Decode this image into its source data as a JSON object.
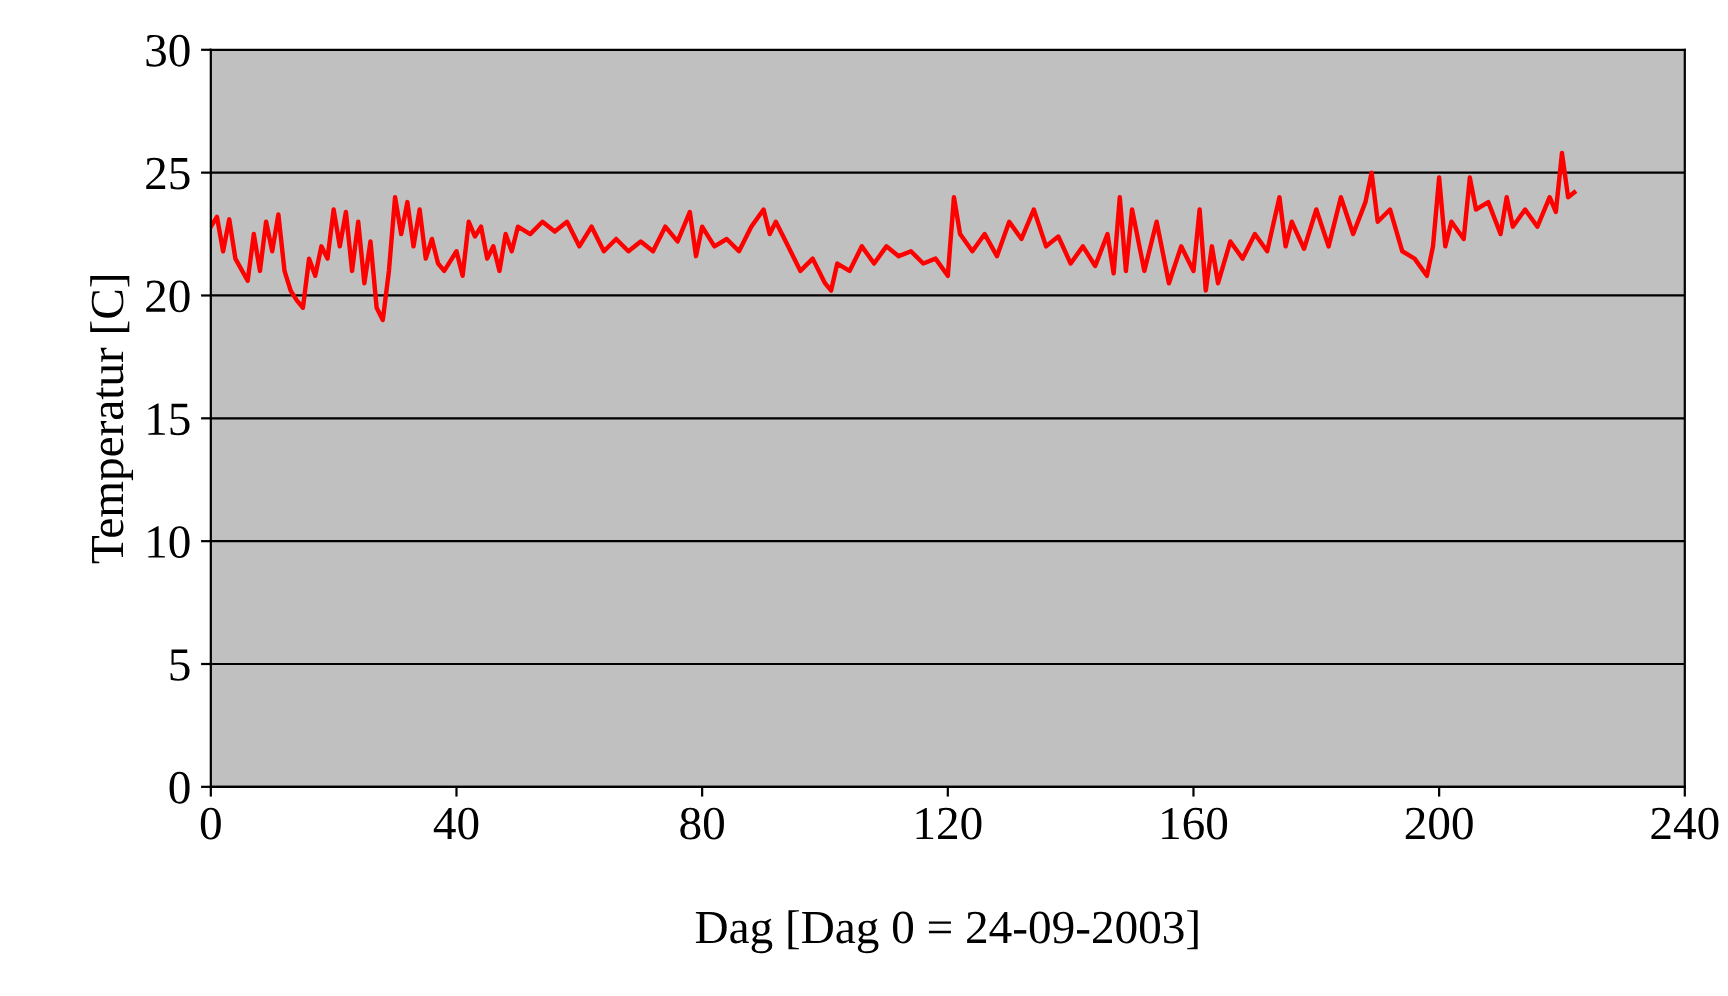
{
  "chart_data": {
    "type": "line",
    "xlabel": "Dag [Dag 0 = 24-09-2003]",
    "ylabel": "Temperatur [C]",
    "xlim": [
      0,
      240
    ],
    "xticks": [
      0,
      40,
      80,
      120,
      160,
      200,
      240
    ],
    "ylim": [
      0,
      30
    ],
    "yticks": [
      0,
      5,
      10,
      15,
      20,
      25,
      30
    ],
    "grid": "y",
    "legend": false,
    "series": [
      {
        "color": "#ff0000",
        "x": [
          0,
          1,
          2,
          3,
          4,
          6,
          7,
          8,
          9,
          10,
          11,
          12,
          13,
          14,
          15,
          16,
          17,
          18,
          19,
          20,
          21,
          22,
          23,
          24,
          25,
          26,
          27,
          28,
          29,
          30,
          31,
          32,
          33,
          34,
          35,
          36,
          37,
          38,
          40,
          41,
          42,
          43,
          44,
          45,
          46,
          47,
          48,
          49,
          50,
          52,
          54,
          56,
          58,
          60,
          62,
          64,
          66,
          68,
          70,
          72,
          74,
          76,
          78,
          79,
          80,
          82,
          84,
          86,
          88,
          90,
          91,
          92,
          94,
          96,
          98,
          100,
          101,
          102,
          104,
          106,
          108,
          110,
          112,
          114,
          116,
          118,
          120,
          121,
          122,
          124,
          126,
          128,
          130,
          132,
          134,
          136,
          138,
          140,
          142,
          144,
          146,
          147,
          148,
          149,
          150,
          152,
          154,
          156,
          158,
          160,
          161,
          162,
          163,
          164,
          166,
          168,
          170,
          172,
          174,
          175,
          176,
          178,
          180,
          182,
          184,
          186,
          188,
          189,
          190,
          192,
          194,
          196,
          198,
          199,
          200,
          201,
          202,
          204,
          205,
          206,
          208,
          210,
          211,
          212,
          214,
          216,
          218,
          219,
          220,
          221,
          222
        ],
        "values": [
          22.8,
          23.2,
          21.8,
          23.1,
          21.5,
          20.6,
          22.5,
          21.0,
          23.0,
          21.8,
          23.3,
          21.0,
          20.2,
          19.8,
          19.5,
          21.5,
          20.8,
          22.0,
          21.5,
          23.5,
          22.0,
          23.4,
          21.0,
          23.0,
          20.5,
          22.2,
          19.5,
          19.0,
          21.0,
          24.0,
          22.5,
          23.8,
          22.0,
          23.5,
          21.5,
          22.3,
          21.3,
          21.0,
          21.8,
          20.8,
          23.0,
          22.4,
          22.8,
          21.5,
          22.0,
          21.0,
          22.5,
          21.8,
          22.8,
          22.5,
          23.0,
          22.6,
          23.0,
          22.0,
          22.8,
          21.8,
          22.3,
          21.8,
          22.2,
          21.8,
          22.8,
          22.2,
          23.4,
          21.6,
          22.8,
          22.0,
          22.3,
          21.8,
          22.8,
          23.5,
          22.5,
          23.0,
          22.0,
          21.0,
          21.5,
          20.5,
          20.2,
          21.3,
          21.0,
          22.0,
          21.3,
          22.0,
          21.6,
          21.8,
          21.3,
          21.5,
          20.8,
          24.0,
          22.5,
          21.8,
          22.5,
          21.6,
          23.0,
          22.3,
          23.5,
          22.0,
          22.4,
          21.3,
          22.0,
          21.2,
          22.5,
          20.9,
          24.0,
          21.0,
          23.5,
          21.0,
          23.0,
          20.5,
          22.0,
          21.0,
          23.5,
          20.2,
          22.0,
          20.5,
          22.2,
          21.5,
          22.5,
          21.8,
          24.0,
          22.0,
          23.0,
          21.9,
          23.5,
          22.0,
          24.0,
          22.5,
          23.8,
          25.0,
          23.0,
          23.5,
          21.8,
          21.5,
          20.8,
          22.0,
          24.8,
          22.0,
          23.0,
          22.3,
          24.8,
          23.5,
          23.8,
          22.5,
          24.0,
          22.8,
          23.5,
          22.8,
          24.0,
          23.4,
          25.8,
          24.0,
          24.2
        ]
      }
    ]
  }
}
